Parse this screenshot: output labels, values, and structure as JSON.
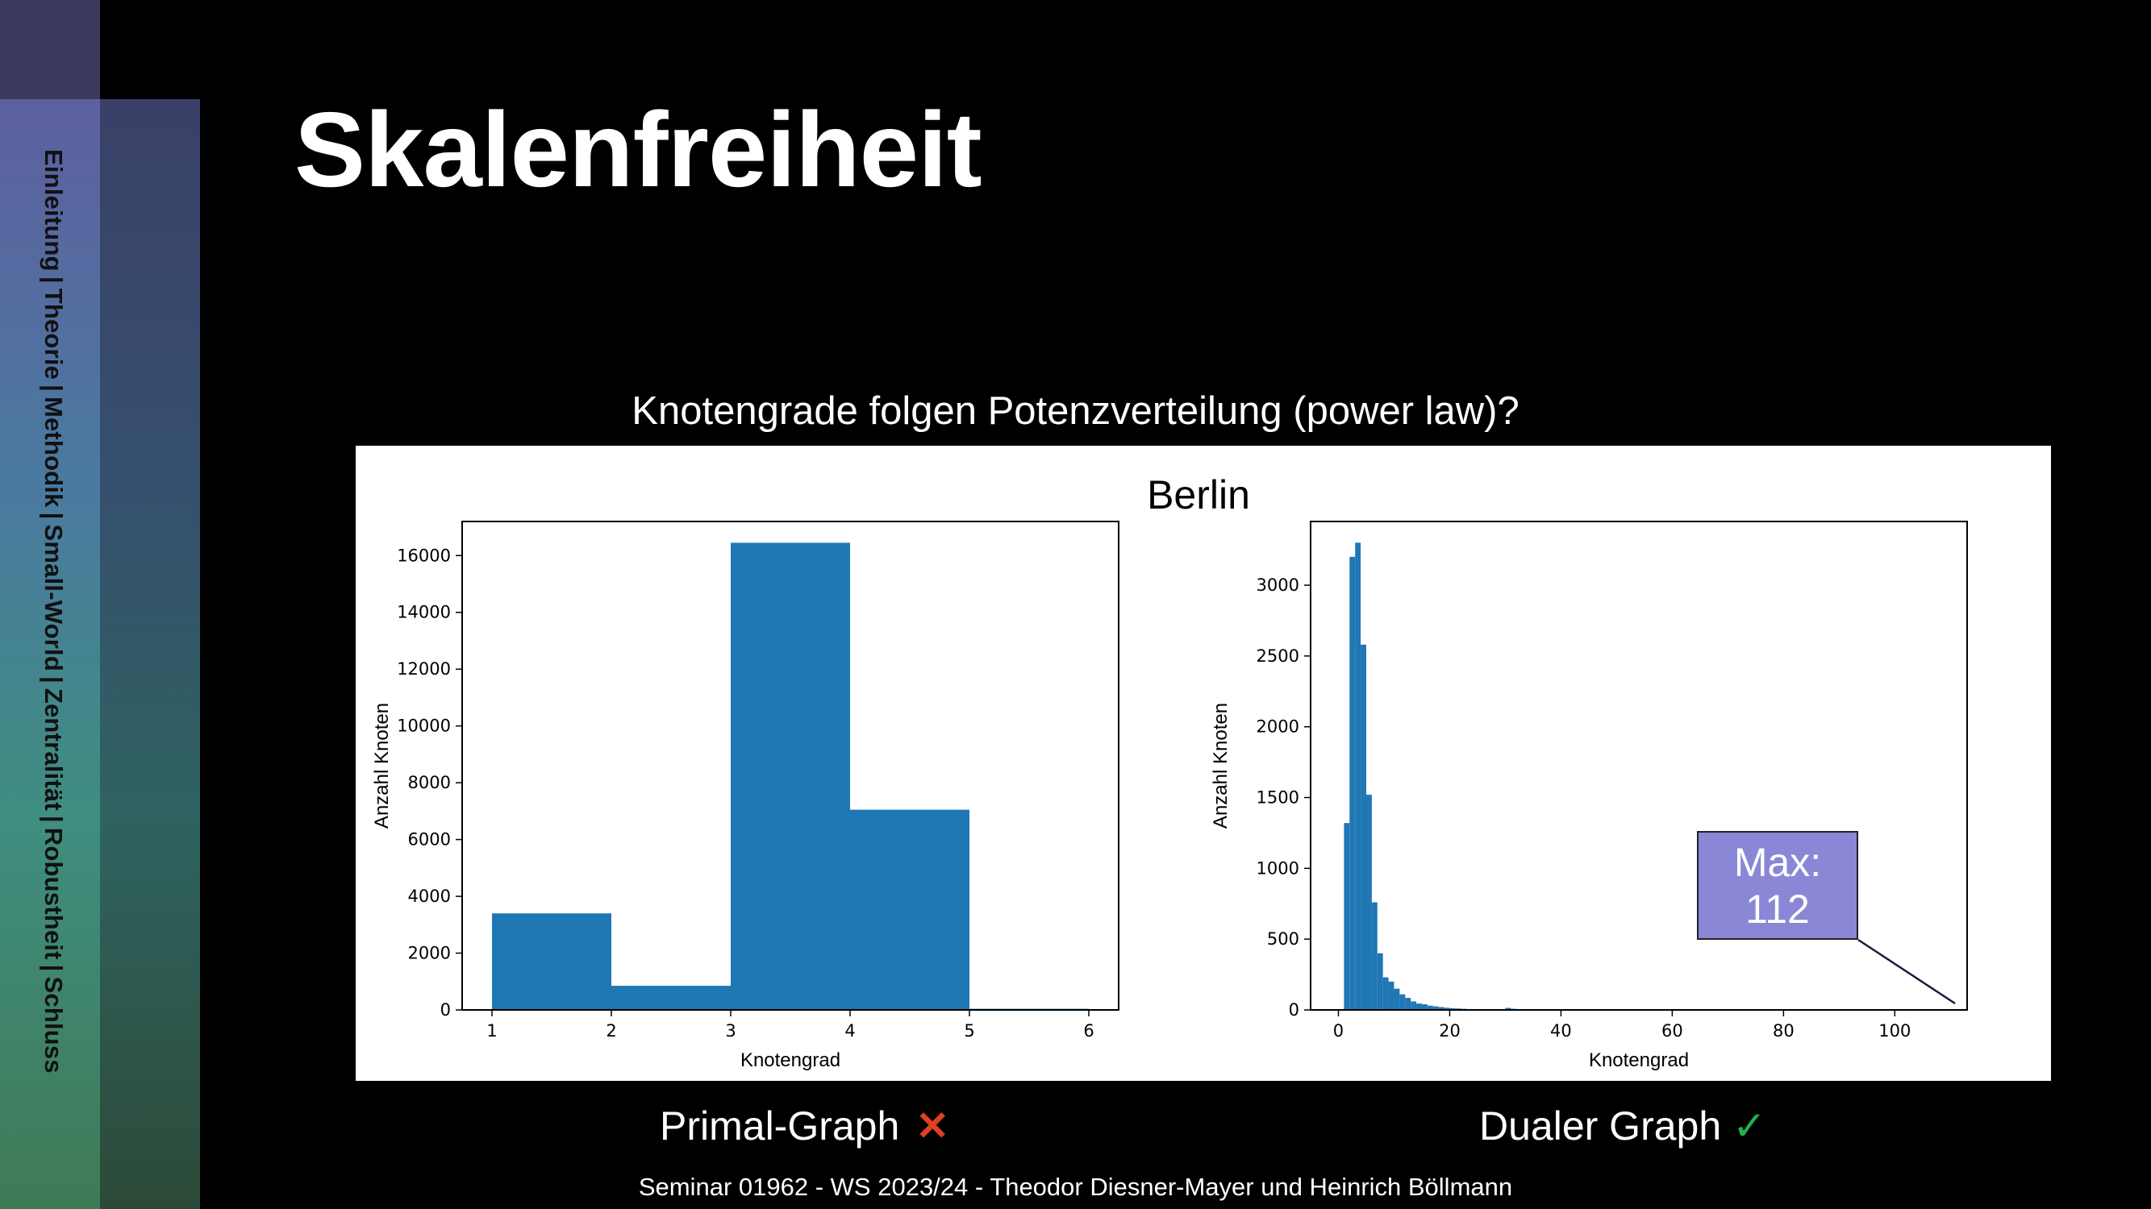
{
  "sidebar": {
    "nav_items": [
      "Einleitung",
      "Theorie",
      "Methodik",
      "Small-World",
      "Zentralität",
      "Robustheit",
      "Schluss"
    ],
    "separator": "|"
  },
  "slide": {
    "title": "Skalenfreiheit",
    "subtitle": "Knotengrade folgen Potenzverteilung (power law)?",
    "city": "Berlin",
    "primal_caption": "Primal-Graph",
    "primal_mark": "✕",
    "dual_caption": "Dualer Graph",
    "dual_mark": "✓",
    "footer": "Seminar 01962 - WS 2023/24 - Theodor Diesner-Mayer und Heinrich Böllmann",
    "annotation": {
      "line1": "Max:",
      "line2": "112"
    }
  },
  "colors": {
    "bar": "#1f77b4",
    "annotation_box": "#8a87d6",
    "cross": "#e0401f",
    "check": "#22b14c"
  },
  "chart_data": [
    {
      "type": "bar",
      "name": "primal",
      "xlabel": "Knotengrad",
      "ylabel": "Anzahl Knoten",
      "xlim": [
        0.75,
        6.25
      ],
      "ylim": [
        0,
        17200
      ],
      "xticks": [
        1,
        2,
        3,
        4,
        5,
        6
      ],
      "yticks": [
        0,
        2000,
        4000,
        6000,
        8000,
        10000,
        12000,
        14000,
        16000
      ],
      "bins": [
        {
          "x0": 1,
          "x1": 2,
          "value": 3400
        },
        {
          "x0": 2,
          "x1": 3,
          "value": 850
        },
        {
          "x0": 3,
          "x1": 4,
          "value": 16450
        },
        {
          "x0": 4,
          "x1": 5,
          "value": 7050
        },
        {
          "x0": 5,
          "x1": 6,
          "value": 40
        }
      ]
    },
    {
      "type": "bar",
      "name": "dual",
      "xlabel": "Knotengrad",
      "ylabel": "Anzahl Knoten",
      "xlim": [
        -5,
        113
      ],
      "ylim": [
        0,
        3450
      ],
      "xticks": [
        0,
        20,
        40,
        60,
        80,
        100
      ],
      "yticks": [
        0,
        500,
        1000,
        1500,
        2000,
        2500,
        3000
      ],
      "bin_width": 1,
      "bins": [
        {
          "x0": 1,
          "value": 1320
        },
        {
          "x0": 2,
          "value": 3200
        },
        {
          "x0": 3,
          "value": 3300
        },
        {
          "x0": 4,
          "value": 2580
        },
        {
          "x0": 5,
          "value": 1520
        },
        {
          "x0": 6,
          "value": 760
        },
        {
          "x0": 7,
          "value": 400
        },
        {
          "x0": 8,
          "value": 230
        },
        {
          "x0": 9,
          "value": 200
        },
        {
          "x0": 10,
          "value": 150
        },
        {
          "x0": 11,
          "value": 110
        },
        {
          "x0": 12,
          "value": 85
        },
        {
          "x0": 13,
          "value": 60
        },
        {
          "x0": 14,
          "value": 45
        },
        {
          "x0": 15,
          "value": 40
        },
        {
          "x0": 16,
          "value": 30
        },
        {
          "x0": 17,
          "value": 25
        },
        {
          "x0": 18,
          "value": 20
        },
        {
          "x0": 19,
          "value": 15
        },
        {
          "x0": 20,
          "value": 12
        },
        {
          "x0": 21,
          "value": 10
        },
        {
          "x0": 22,
          "value": 8
        },
        {
          "x0": 23,
          "value": 6
        },
        {
          "x0": 24,
          "value": 5
        },
        {
          "x0": 30,
          "value": 14
        },
        {
          "x0": 31,
          "value": 8
        }
      ],
      "annotation_points_to": 112
    }
  ]
}
